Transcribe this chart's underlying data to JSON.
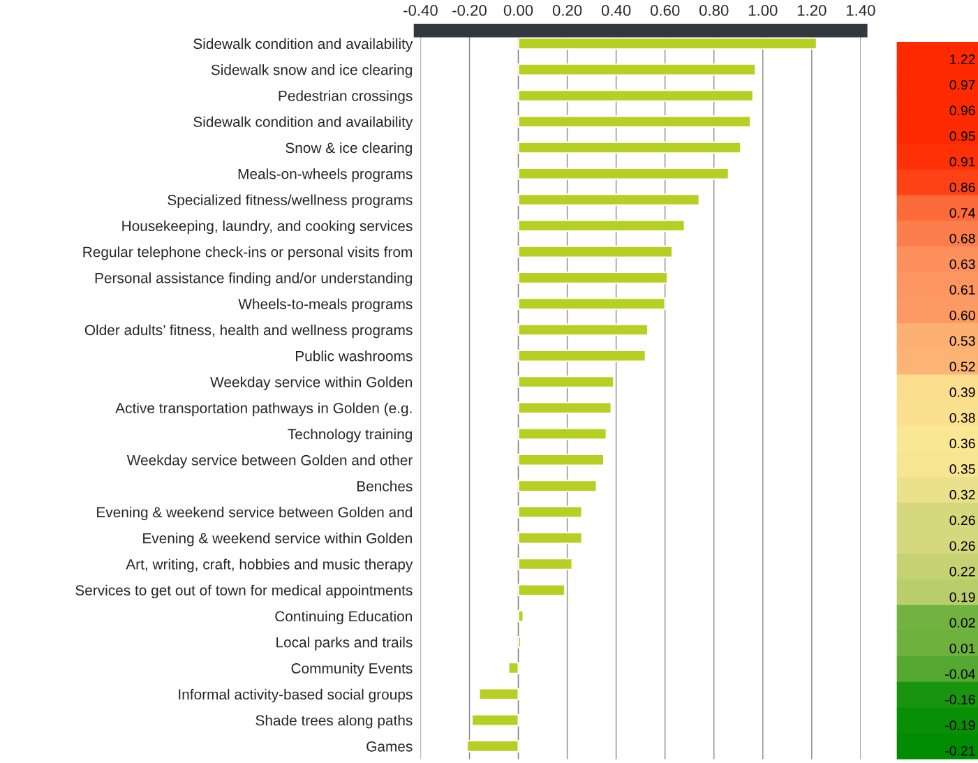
{
  "chart_data": {
    "type": "bar",
    "orientation": "horizontal",
    "categories": [
      "Sidewalk condition and availability",
      "Sidewalk snow and ice clearing",
      "Pedestrian crossings",
      "Sidewalk condition and availability",
      "Snow & ice clearing",
      "Meals-on-wheels programs",
      "Specialized fitness/wellness programs",
      "Housekeeping, laundry, and cooking services",
      "Regular telephone check-ins or personal visits from",
      "Personal assistance finding and/or understanding",
      "Wheels-to-meals programs",
      "Older adults’ fitness, health and wellness programs",
      "Public washrooms",
      "Weekday service within Golden",
      "Active transportation pathways in Golden (e.g.",
      "Technology training",
      "Weekday service between Golden and other",
      "Benches",
      "Evening & weekend service between Golden and",
      "Evening & weekend service within Golden",
      "Art, writing, craft, hobbies and music therapy",
      "Services to get out of town for medical appointments",
      "Continuing Education",
      "Local parks and trails",
      "Community Events",
      "Informal activity-based social groups",
      "Shade trees along paths",
      "Games"
    ],
    "values": [
      1.22,
      0.97,
      0.96,
      0.95,
      0.91,
      0.86,
      0.74,
      0.68,
      0.63,
      0.61,
      0.6,
      0.53,
      0.52,
      0.39,
      0.38,
      0.36,
      0.35,
      0.32,
      0.26,
      0.26,
      0.22,
      0.19,
      0.02,
      0.01,
      -0.04,
      -0.16,
      -0.19,
      -0.21
    ],
    "color": "#b5d022",
    "value_labels": [
      "1.22",
      "0.97",
      "0.96",
      "0.95",
      "0.91",
      "0.86",
      "0.74",
      "0.68",
      "0.63",
      "0.61",
      "0.60",
      "0.53",
      "0.52",
      "0.39",
      "0.38",
      "0.36",
      "0.35",
      "0.32",
      "0.26",
      "0.26",
      "0.22",
      "0.19",
      "0.02",
      "0.01",
      "-0.04",
      "-0.16",
      "-0.19",
      "-0.21"
    ],
    "xlim": [
      -0.4,
      1.4
    ],
    "xticks": [
      {
        "value": -0.4,
        "label": "-0.40"
      },
      {
        "value": -0.2,
        "label": "-0.20"
      },
      {
        "value": 0,
        "label": "0.00"
      },
      {
        "value": 0.2,
        "label": "0.20"
      },
      {
        "value": 0.4,
        "label": "0.40"
      },
      {
        "value": 0.6,
        "label": "0.60"
      },
      {
        "value": 0.8,
        "label": "0.80"
      },
      {
        "value": 1.0,
        "label": "1.00"
      },
      {
        "value": 1.2,
        "label": "1.20"
      },
      {
        "value": 1.4,
        "label": "1.40"
      }
    ],
    "grid": "x",
    "legend": false
  }
}
